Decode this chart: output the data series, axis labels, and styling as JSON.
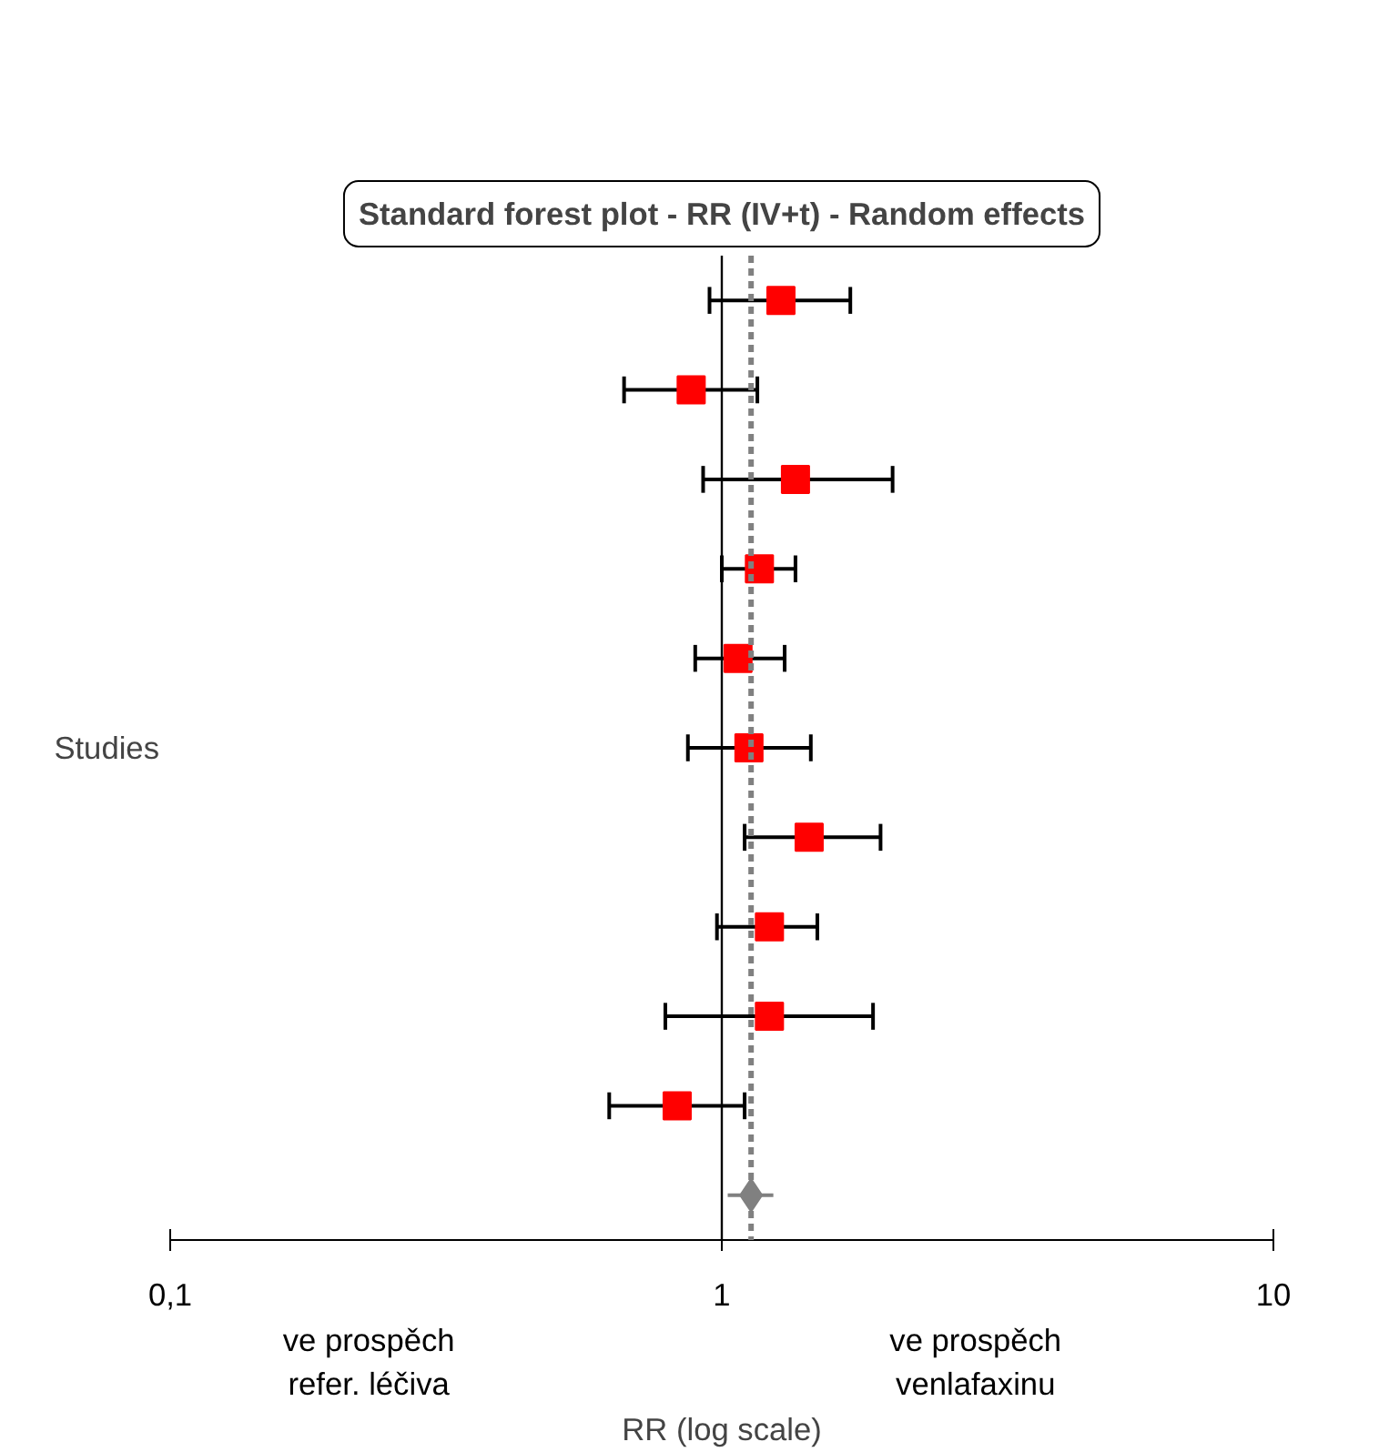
{
  "chart_data": {
    "type": "scatter",
    "title": "Standard forest plot - RR (IV+t) - Random effects",
    "xlabel": "RR (log scale)",
    "ylabel": "Studies",
    "orientation": "horizontal",
    "log": "x",
    "grid": false,
    "legend": false,
    "tick_labels": "x",
    "categories": [
      null,
      null,
      null,
      null,
      null,
      null,
      null,
      null,
      null,
      null,
      null
    ],
    "xlim": [
      0.1,
      10
    ],
    "xticks": [
      {
        "value": 0.1,
        "label": "0,1"
      },
      1,
      10
    ],
    "series": [
      {
        "color": "#ff0000",
        "marker": "square",
        "values": [
          1.28,
          0.88,
          1.36,
          1.17,
          1.07,
          1.12,
          1.44,
          1.22,
          1.22,
          0.83,
          null
        ],
        "errors": [
          [
            0.95,
            1.71
          ],
          [
            0.665,
            1.16
          ],
          [
            0.925,
            2.04
          ],
          [
            1.0,
            1.36
          ],
          [
            0.895,
            1.3
          ],
          [
            0.868,
            1.45
          ],
          [
            1.1,
            1.94
          ],
          [
            0.98,
            1.49
          ],
          [
            0.79,
            1.88
          ],
          [
            0.625,
            1.1
          ],
          null
        ]
      },
      {
        "color": "#808080",
        "marker": "diamond",
        "values": [
          null,
          null,
          null,
          null,
          null,
          null,
          null,
          null,
          null,
          null,
          1.13
        ],
        "errors": [
          null,
          null,
          null,
          null,
          null,
          null,
          null,
          null,
          null,
          null,
          [
            1.025,
            1.24
          ]
        ]
      }
    ],
    "ref_lines": [
      {
        "axis": "x",
        "value": 1,
        "color": "#000000",
        "line_style": "solid"
      },
      {
        "axis": "x",
        "value": 1.13,
        "color": "#808080",
        "line_style": "dashed"
      }
    ],
    "annotations": [
      "ve prospěch\nrefer. léčiva",
      "ve prospěch\nvenlafaxinu"
    ]
  }
}
